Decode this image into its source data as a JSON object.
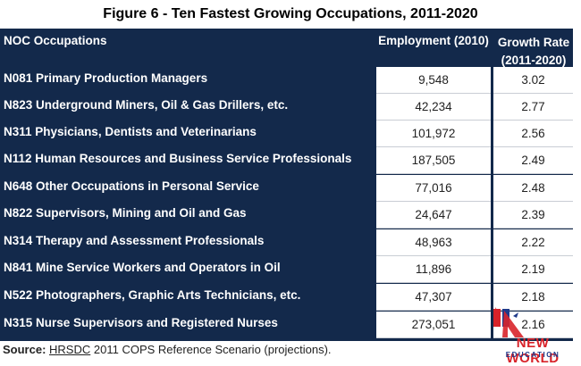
{
  "title": "Figure 6 - Ten Fastest Growing Occupations, 2011-2020",
  "header": {
    "col1": "NOC  Occupations",
    "col2": "Employment (2010)",
    "col3_line1": "Growth Rate",
    "col3_line2": "(2011-2020)"
  },
  "rows": [
    {
      "occ": "N081 Primary Production Managers",
      "emp": "9,548",
      "rate": "3.02"
    },
    {
      "occ": "N823 Underground Miners, Oil & Gas Drillers, etc.",
      "emp": "42,234",
      "rate": "2.77"
    },
    {
      "occ": "N311 Physicians, Dentists and Veterinarians",
      "emp": "101,972",
      "rate": "2.56"
    },
    {
      "occ": "N112 Human Resources and Business Service Professionals",
      "emp": "187,505",
      "rate": "2.49"
    },
    {
      "occ": "N648 Other Occupations in Personal Service",
      "emp": "77,016",
      "rate": "2.48"
    },
    {
      "occ": "N822 Supervisors, Mining and Oil and Gas",
      "emp": "24,647",
      "rate": "2.39"
    },
    {
      "occ": "N314 Therapy and Assessment Professionals",
      "emp": "48,963",
      "rate": "2.22"
    },
    {
      "occ": "N841 Mine Service Workers and Operators in Oil",
      "emp": "11,896",
      "rate": "2.19"
    },
    {
      "occ": "N522 Photographers, Graphic Arts Technicians, etc.",
      "emp": "47,307",
      "rate": "2.18"
    },
    {
      "occ": "N315 Nurse Supervisors and Registered Nurses",
      "emp": "273,051",
      "rate": "2.16"
    }
  ],
  "source": {
    "label": "Source:",
    "org": "HRSDC",
    "text": " 2011 COPS Reference Scenario (projections)."
  },
  "logo": {
    "line1": "NEW WORLD",
    "line2": "EDUCATION",
    "colors": {
      "red": "#d8232a",
      "blue": "#1f3a8a"
    }
  },
  "colors": {
    "header_bg": "#13294b",
    "cell_bg": "#ffffff"
  }
}
